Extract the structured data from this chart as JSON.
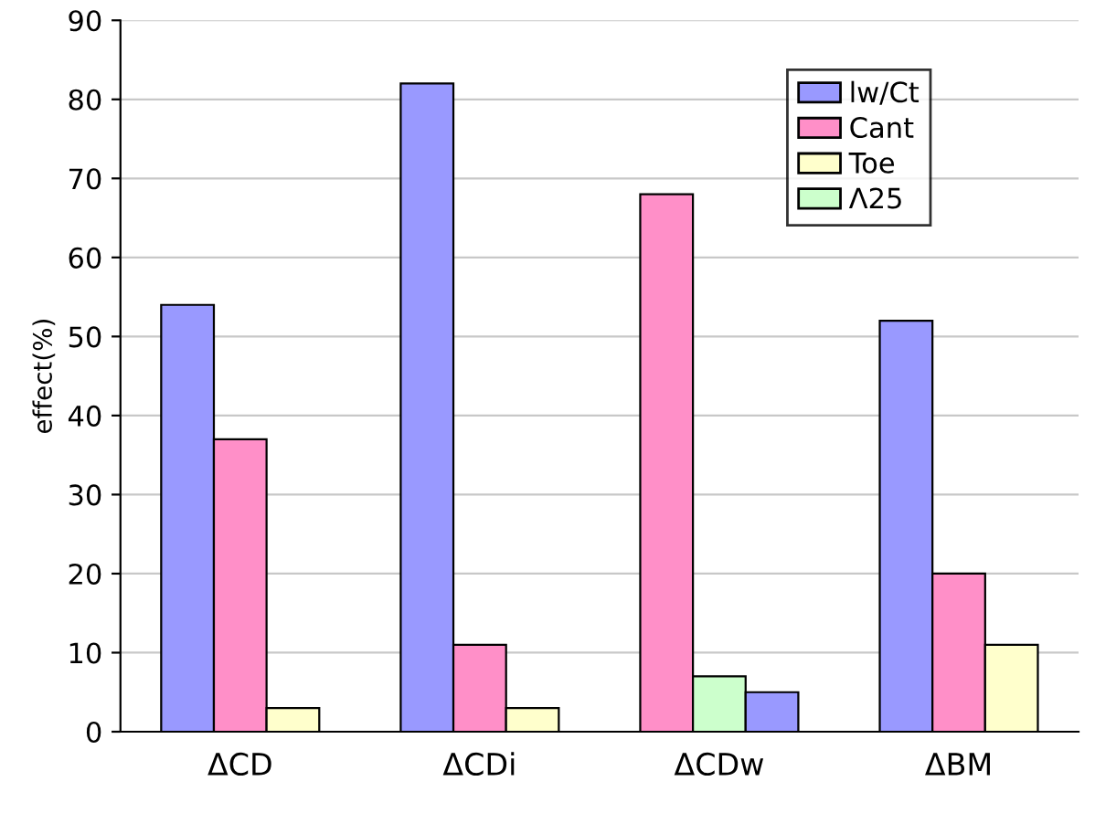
{
  "chart_data": {
    "type": "bar",
    "ylabel": "effect(%)",
    "categories": [
      "ΔCD",
      "ΔCDi",
      "ΔCDw",
      "ΔBM"
    ],
    "series": [
      {
        "name": "lw/Ct",
        "color": "#9999ff",
        "values": [
          54,
          82,
          null,
          52
        ]
      },
      {
        "name": "Cant",
        "color": "#ff8fc8",
        "values": [
          37,
          11,
          68,
          20
        ]
      },
      {
        "name": "Toe",
        "color": "#ffffcc",
        "values": [
          3,
          3,
          null,
          11
        ]
      },
      {
        "name": "Λ25",
        "color": "#ccffcc",
        "values": [
          null,
          null,
          7,
          null
        ]
      },
      {
        "color": "#9999ff",
        "values": [
          null,
          null,
          5,
          null
        ]
      }
    ],
    "ylim": [
      0,
      90
    ],
    "yticks": [
      0,
      10,
      20,
      30,
      40,
      50,
      60,
      70,
      80,
      90
    ],
    "grid": "y",
    "legend": "top right"
  }
}
